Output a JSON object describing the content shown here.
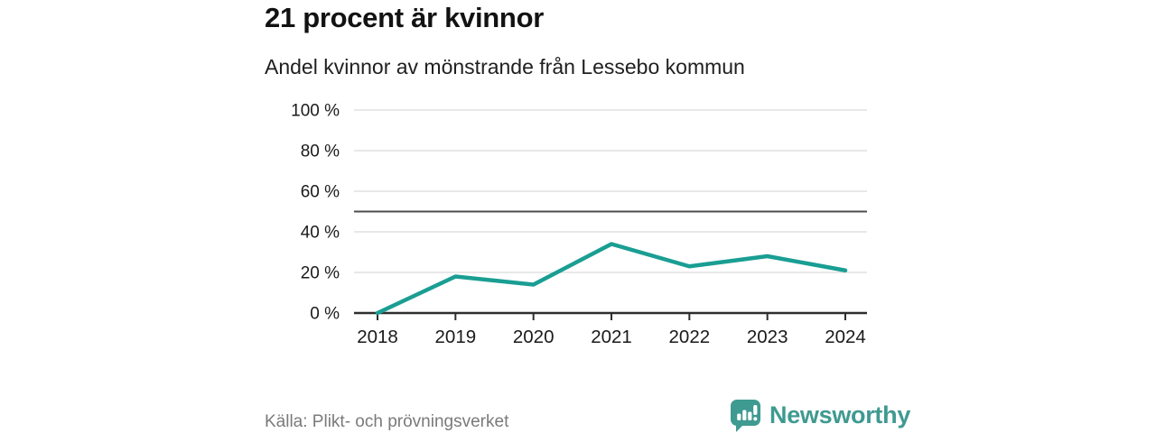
{
  "header": {
    "title": "21 procent är kvinnor",
    "subtitle": "Andel kvinnor av mönstrande från Lessebo kommun"
  },
  "chart_data": {
    "type": "line",
    "title": "21 procent är kvinnor",
    "subtitle": "Andel kvinnor av mönstrande från Lessebo kommun",
    "x": [
      2018,
      2019,
      2020,
      2021,
      2022,
      2023,
      2024
    ],
    "x_labels": [
      "2018",
      "2019",
      "2020",
      "2021",
      "2022",
      "2023",
      "2024"
    ],
    "series": [
      {
        "name": "Andel kvinnor av mönstrande",
        "values": [
          0,
          18,
          14,
          34,
          23,
          28,
          21
        ]
      }
    ],
    "unit": "%",
    "ylim": [
      0,
      100
    ],
    "yticks": [
      0,
      20,
      40,
      60,
      80,
      100
    ],
    "ytick_labels": [
      "0 %",
      "20 %",
      "40 %",
      "60 %",
      "80 %",
      "100 %"
    ],
    "reference_line": {
      "value": 50
    },
    "grid": true,
    "legend": "none",
    "line_color": "#1a9e93"
  },
  "footer": {
    "source": "Källa: Plikt- och prövningsverket",
    "brand_name": "Newsworthy"
  },
  "colors": {
    "accent_teal": "#1a9e93",
    "brand_teal": "#3f9a91",
    "grid_line": "#d9d9d9",
    "reference_line": "#4d4d4d",
    "axis_line": "#2e2e2e",
    "tick_text": "#1a1a1a",
    "source_text": "#7a7a7a"
  }
}
